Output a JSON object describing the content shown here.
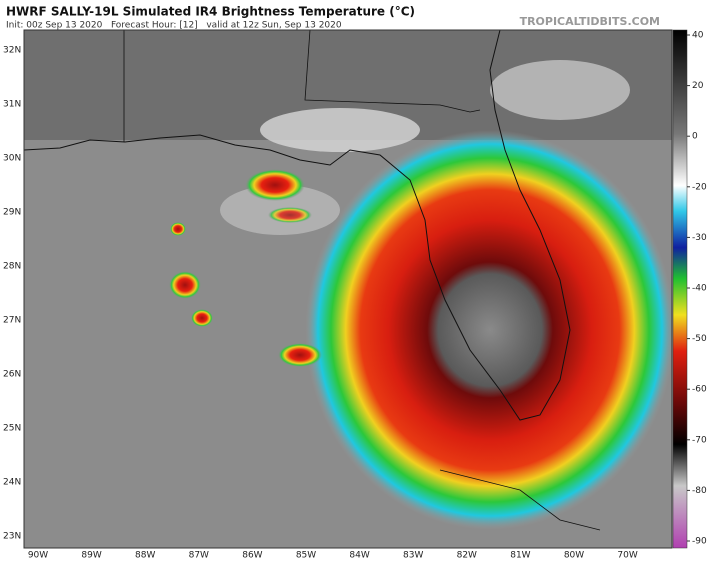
{
  "header": {
    "title": "HWRF SALLY-19L Simulated IR4 Brightness Temperature (°C)",
    "subtitle": "Init: 00z Sep 13 2020   Forecast Hour: [12]   valid at 12z Sun, Sep 13 2020",
    "watermark": "TROPICALTIDBITS.COM"
  },
  "map": {
    "lat_labels": [
      "32N",
      "31N",
      "30N",
      "29N",
      "28N",
      "27N",
      "26N",
      "25N",
      "24N",
      "23N"
    ],
    "lon_labels": [
      "90W",
      "89W",
      "88W",
      "87W",
      "86W",
      "85W",
      "84W",
      "83W",
      "82W",
      "81W",
      "80W",
      "70W"
    ]
  },
  "colorbar": {
    "ticks": [
      40,
      20,
      0,
      -20,
      -30,
      -40,
      -50,
      -60,
      -70,
      -80,
      -90
    ]
  }
}
